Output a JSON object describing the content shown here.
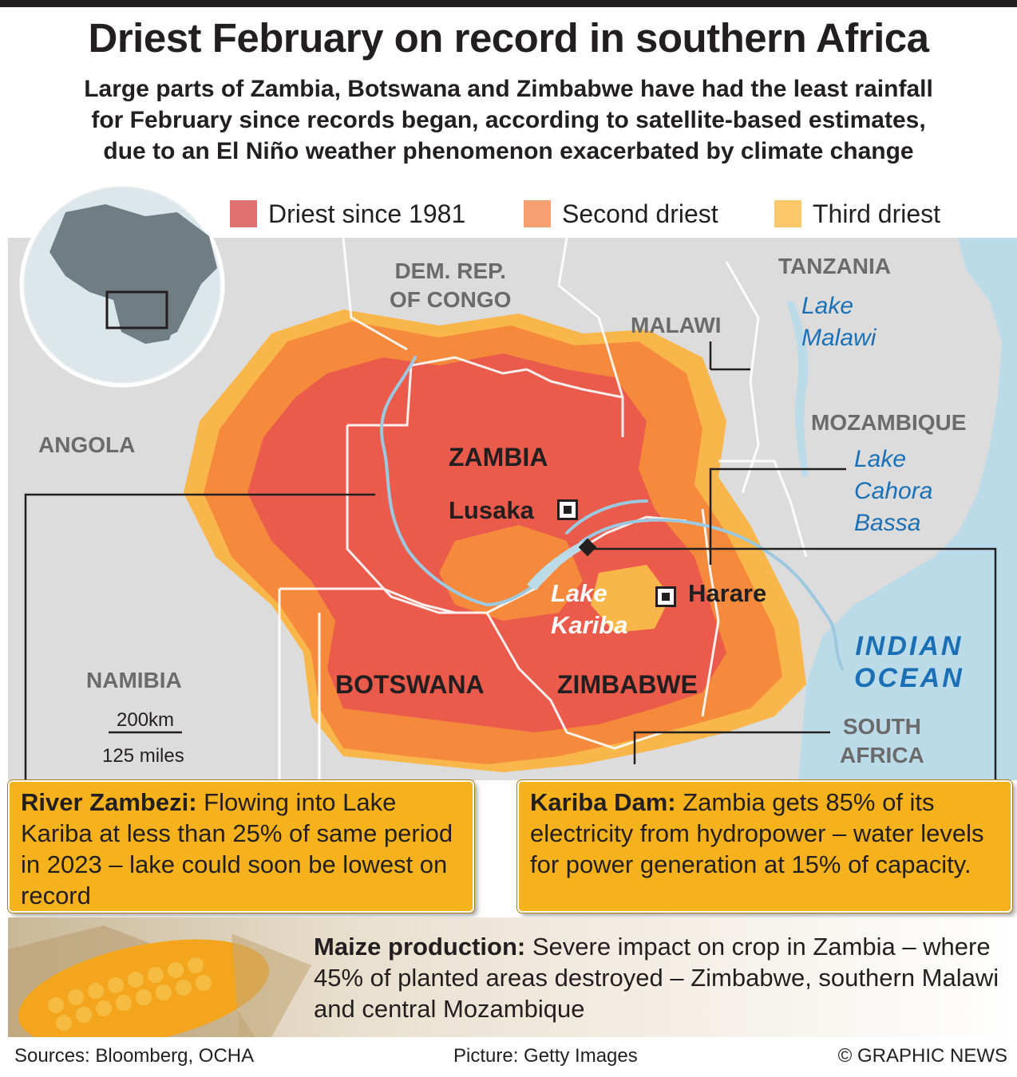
{
  "title": "Driest February on record in southern Africa",
  "subtitle": [
    "Large parts of Zambia, Botswana and Zimbabwe have had the least rainfall",
    "for February since records began, according to satellite-based estimates,",
    "due to an El Niño weather phenomenon exacerbated by climate change"
  ],
  "legend": [
    {
      "label": "Driest since 1981",
      "color": "#e07070"
    },
    {
      "label": "Second driest",
      "color": "#f4a070"
    },
    {
      "label": "Third driest",
      "color": "#fbc96a"
    }
  ],
  "colors": {
    "driest": "#ea5b4b",
    "second": "#f58a3c",
    "third": "#f9b64a",
    "land": "#dcdcdc",
    "water": "#bcdbe8",
    "callout": "#f6b21c"
  },
  "map": {
    "countries": {
      "drc": [
        "DEM. REP.",
        "OF CONGO"
      ],
      "tanzania": "TANZANIA",
      "malawi": "MALAWI",
      "angola": "ANGOLA",
      "mozambique": "MOZAMBIQUE",
      "zambia": "ZAMBIA",
      "namibia": "NAMIBIA",
      "botswana": "BOTSWANA",
      "zimbabwe": "ZIMBABWE",
      "south_africa": [
        "SOUTH",
        "AFRICA"
      ]
    },
    "lakes": {
      "malawi": [
        "Lake",
        "Malawi"
      ],
      "cahora_bassa": [
        "Lake",
        "Cahora",
        "Bassa"
      ],
      "kariba": [
        "Lake",
        "Kariba"
      ]
    },
    "ocean": [
      "INDIAN",
      "OCEAN"
    ],
    "cities": {
      "lusaka": "Lusaka",
      "harare": "Harare"
    },
    "scale": {
      "km": "200km",
      "miles": "125 miles"
    }
  },
  "callouts": {
    "zambezi": {
      "heading": "River Zambezi:",
      "text": " Flowing into Lake Kariba at less than 25% of same period in 2023 – lake could soon be lowest on record"
    },
    "kariba": {
      "heading": "Kariba Dam:",
      "text": " Zambia gets 85% of its electricity from hydropower – water levels for power generation at 15% of capacity."
    },
    "maize": {
      "heading": "Maize production:",
      "text": " Severe impact on crop in Zambia – where 45% of planted areas destroyed – Zimbabwe, southern Malawi and central Mozambique"
    }
  },
  "footer": {
    "sources": "Sources: Bloomberg, OCHA",
    "picture": "Picture: Getty Images",
    "credit": "© GRAPHIC NEWS"
  }
}
